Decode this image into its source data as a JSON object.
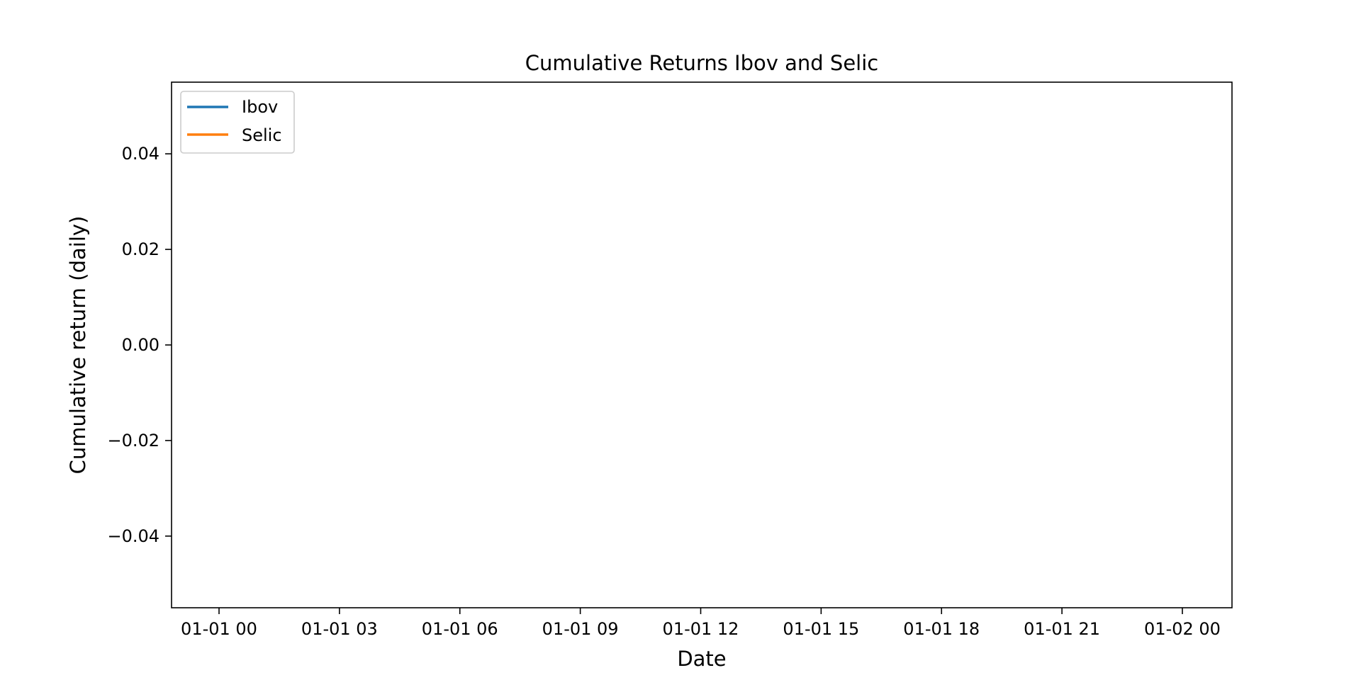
{
  "chart_data": {
    "type": "line",
    "title": "Cumulative Returns Ibov and Selic",
    "xlabel": "Date",
    "ylabel": "Cumulative return (daily)",
    "x_ticks": [
      "01-01 00",
      "01-01 03",
      "01-01 06",
      "01-01 09",
      "01-01 12",
      "01-01 15",
      "01-01 18",
      "01-01 21",
      "01-02 00"
    ],
    "y_ticks": [
      0.04,
      0.02,
      0.0,
      -0.02,
      -0.04
    ],
    "y_tick_labels": [
      "0.04",
      "0.02",
      "0.00",
      "−0.02",
      "−0.04"
    ],
    "ylim": [
      -0.055,
      0.055
    ],
    "grid": false,
    "legend_position": "top-left",
    "series": [
      {
        "name": "Ibov",
        "color": "#1f77b4",
        "x": [],
        "y": []
      },
      {
        "name": "Selic",
        "color": "#ff7f0e",
        "x": [],
        "y": []
      }
    ]
  }
}
